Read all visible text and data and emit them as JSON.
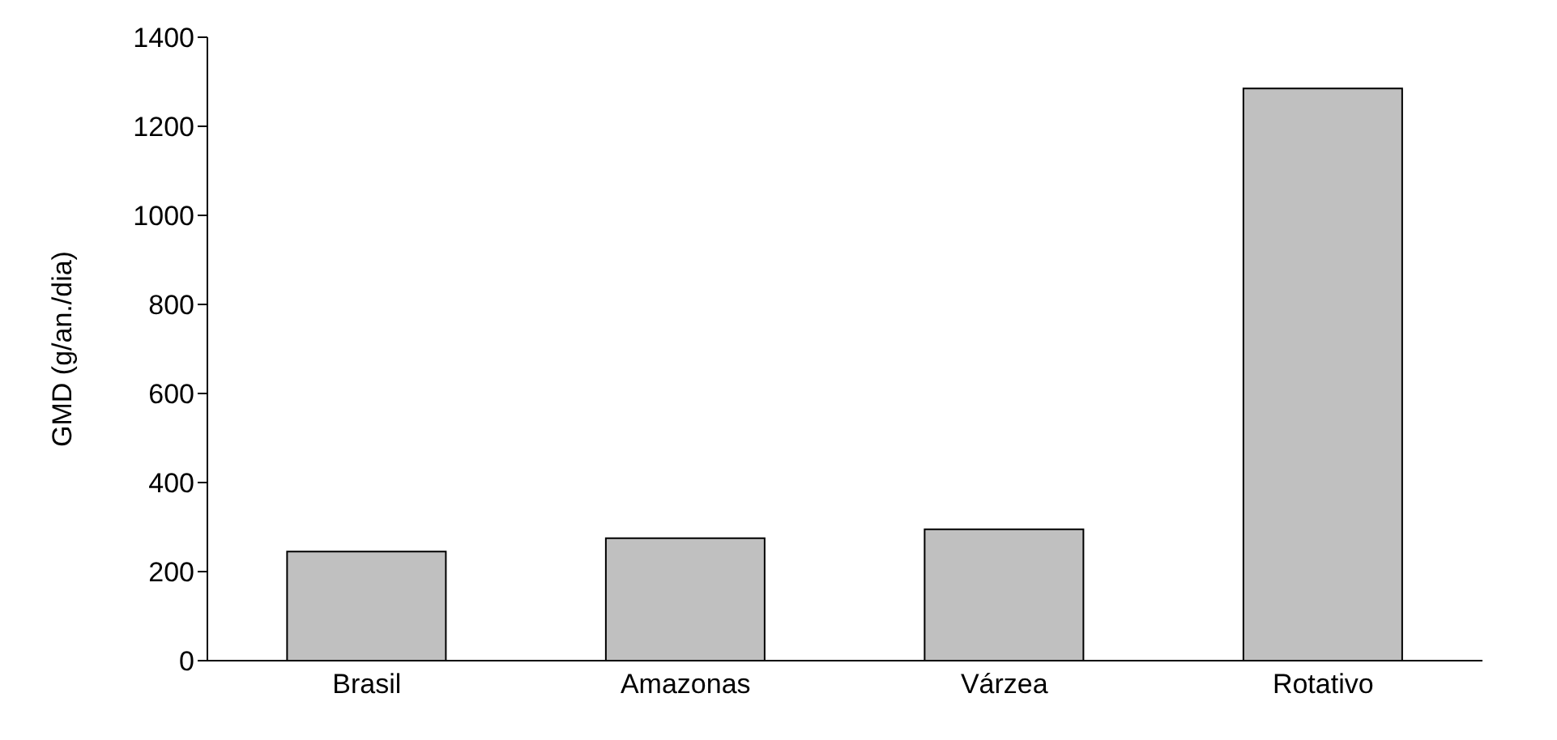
{
  "chart_data": {
    "type": "bar",
    "ylabel": "GMD (g/an./dia)",
    "categories": [
      "Brasil",
      "Amazonas",
      "Várzea",
      "Rotativo"
    ],
    "values": [
      245,
      275,
      295,
      1285
    ],
    "color": "#c0c0c0",
    "ylim": [
      0,
      1400
    ],
    "yticks": [
      0,
      200,
      400,
      600,
      800,
      1000,
      1200,
      1400
    ],
    "grid": false
  }
}
